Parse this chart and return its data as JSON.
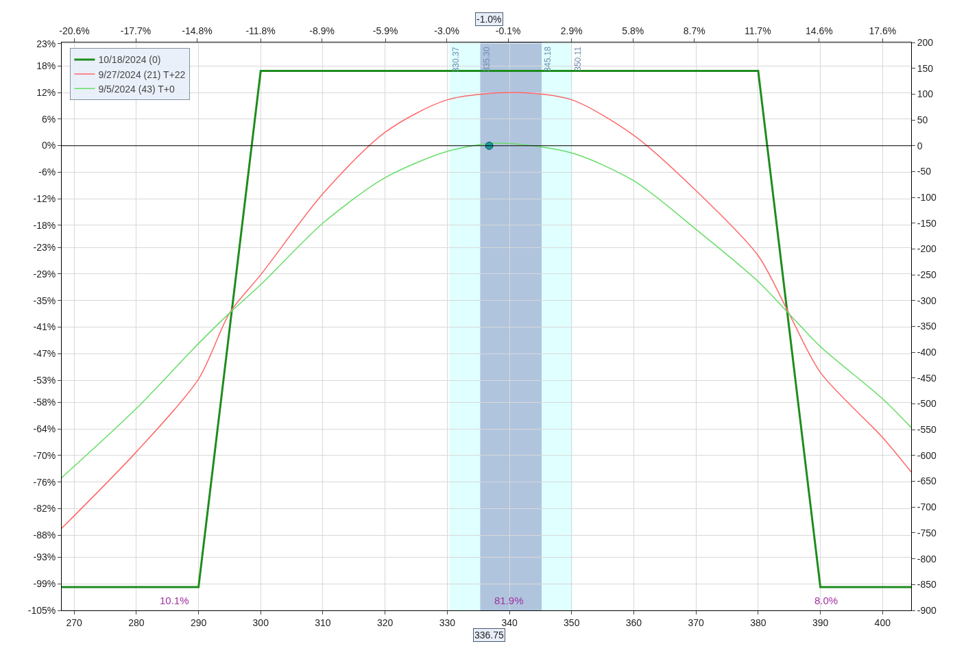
{
  "chart_data": {
    "type": "line",
    "xlim": [
      268,
      404.6
    ],
    "xticks": [
      270,
      280,
      290,
      300,
      310,
      320,
      330,
      340,
      350,
      360,
      370,
      380,
      390,
      400
    ],
    "x2lim": [
      -21.2,
      18.95
    ],
    "x2ticks": [
      {
        "value": -20.6,
        "label": "-20.6%"
      },
      {
        "value": -17.7,
        "label": "-17.7%"
      },
      {
        "value": -14.8,
        "label": "-14.8%"
      },
      {
        "value": -11.8,
        "label": "-11.8%"
      },
      {
        "value": -8.9,
        "label": "-8.9%"
      },
      {
        "value": -5.9,
        "label": "-5.9%"
      },
      {
        "value": -3.0,
        "label": "-3.0%"
      },
      {
        "value": -0.1,
        "label": "-0.1%"
      },
      {
        "value": 2.9,
        "label": "2.9%"
      },
      {
        "value": 5.8,
        "label": "5.8%"
      },
      {
        "value": 8.7,
        "label": "8.7%"
      },
      {
        "value": 11.7,
        "label": "11.7%"
      },
      {
        "value": 14.6,
        "label": "14.6%"
      },
      {
        "value": 17.6,
        "label": "17.6%"
      }
    ],
    "ylim": [
      -105,
      23.3
    ],
    "yticks": [
      {
        "value": 23,
        "label": "23%"
      },
      {
        "value": 18,
        "label": "18%"
      },
      {
        "value": 12,
        "label": "12%"
      },
      {
        "value": 6,
        "label": "6%"
      },
      {
        "value": 0,
        "label": "0%"
      },
      {
        "value": -6,
        "label": "-6%"
      },
      {
        "value": -12,
        "label": "-12%"
      },
      {
        "value": -18,
        "label": "-18%"
      },
      {
        "value": -23,
        "label": "-23%"
      },
      {
        "value": -29,
        "label": "-29%"
      },
      {
        "value": -35,
        "label": "-35%"
      },
      {
        "value": -41,
        "label": "-41%"
      },
      {
        "value": -47,
        "label": "-47%"
      },
      {
        "value": -53,
        "label": "-53%"
      },
      {
        "value": -58,
        "label": "-58%"
      },
      {
        "value": -64,
        "label": "-64%"
      },
      {
        "value": -70,
        "label": "-70%"
      },
      {
        "value": -76,
        "label": "-76%"
      },
      {
        "value": -82,
        "label": "-82%"
      },
      {
        "value": -88,
        "label": "-88%"
      },
      {
        "value": -93,
        "label": "-93%"
      },
      {
        "value": -99,
        "label": "-99%"
      },
      {
        "value": -105,
        "label": "-105%"
      }
    ],
    "y2lim": [
      -900,
      200
    ],
    "y2ticks": [
      200,
      150,
      100,
      50,
      0,
      -50,
      -100,
      -150,
      -200,
      -250,
      -300,
      -350,
      -400,
      -450,
      -500,
      -550,
      -600,
      -650,
      -700,
      -750,
      -800,
      -850,
      -900
    ],
    "series": [
      {
        "name": "10/18/2024 (0)",
        "axis": "y2",
        "color": "#1e8c1e",
        "x": [
          268,
          290,
          300,
          380,
          390,
          404.6
        ],
        "values": [
          -855,
          -855,
          145,
          145,
          -855,
          -855
        ]
      },
      {
        "name": "9/27/2024 (21) T+22",
        "axis": "y2",
        "color": "#ff6666",
        "x": [
          268,
          280,
          290,
          295,
          300,
          310,
          320,
          330,
          341,
          350,
          360,
          370,
          380,
          385,
          390,
          400,
          404.6
        ],
        "values": [
          -741,
          -593,
          -452,
          -324,
          -250,
          -93,
          26,
          89,
          103,
          89,
          20,
          -87,
          -213,
          -326,
          -439,
          -565,
          -632
        ]
      },
      {
        "name": "9/5/2024 (43) T+0",
        "axis": "y2",
        "color": "#66dd66",
        "x": [
          268,
          280,
          290,
          295,
          300,
          310,
          320,
          330,
          338,
          350,
          360,
          370,
          380,
          385,
          390,
          400,
          404.6
        ],
        "values": [
          -643,
          -509,
          -383,
          -324,
          -269,
          -150,
          -62,
          -11,
          5,
          -14,
          -68,
          -162,
          -263,
          -326,
          -389,
          -490,
          -546
        ]
      },
      {
        "type": "scatter",
        "axis": "y2",
        "color": "#1a9a9a",
        "x": [
          336.75
        ],
        "values": [
          0
        ]
      }
    ],
    "bands": [
      {
        "axis": "x",
        "from": 330.37,
        "to": 350.11,
        "color": "#e0ffff"
      },
      {
        "axis": "x",
        "from": 335.3,
        "to": 345.18,
        "color": "#b0c4de"
      }
    ],
    "ref_lines": [
      {
        "axis": "y2",
        "value": 0,
        "color": "#000000"
      }
    ],
    "annotations": [
      "10.1%",
      "81.9%",
      "8.0%",
      "-1.0%",
      "336.75",
      "330.37",
      "335.30",
      "345.18",
      "350.11"
    ],
    "grid": true,
    "legend": "top left"
  }
}
